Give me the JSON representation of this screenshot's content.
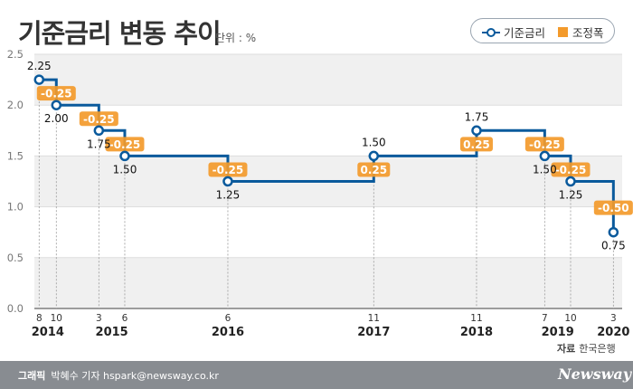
{
  "title": "기준금리 변동 추이",
  "unit": "단위 : %",
  "legend": {
    "rate": "기준금리",
    "adjust": "조정폭"
  },
  "source": {
    "label": "자료",
    "value": "한국은행"
  },
  "credit": {
    "label": "그래픽",
    "value": "박혜수 기자 hspark@newsway.co.kr"
  },
  "brand": "Newsway",
  "colors": {
    "line": "#0a5a9c",
    "adjust": "#f39a2b",
    "band": "#f0f0f0"
  },
  "chart_data": {
    "type": "line",
    "step": true,
    "ylim": [
      0,
      2.5
    ],
    "yticks": [
      "0.0",
      "0.5",
      "1.0",
      "1.5",
      "2.0",
      "2.5"
    ],
    "grid": "alternating horizontal bands",
    "series": [
      {
        "name": "기준금리",
        "points": [
          {
            "date": "2014-08",
            "month": "8",
            "value": 2.25,
            "label": "2.25"
          },
          {
            "date": "2014-10",
            "month": "10",
            "value": 2.0,
            "label": "2.00",
            "change": "-0.25"
          },
          {
            "date": "2015-03",
            "month": "3",
            "value": 1.75,
            "label": "1.75",
            "change": "-0.25"
          },
          {
            "date": "2015-06",
            "month": "6",
            "value": 1.5,
            "label": "1.50",
            "change": "-0.25"
          },
          {
            "date": "2016-06",
            "month": "6",
            "value": 1.25,
            "label": "1.25",
            "change": "-0.25"
          },
          {
            "date": "2017-11",
            "month": "11",
            "value": 1.5,
            "label": "1.50",
            "change": "0.25"
          },
          {
            "date": "2018-11",
            "month": "11",
            "value": 1.75,
            "label": "1.75",
            "change": "0.25"
          },
          {
            "date": "2019-07",
            "month": "7",
            "value": 1.5,
            "label": "1.50",
            "change": "-0.25"
          },
          {
            "date": "2019-10",
            "month": "10",
            "value": 1.25,
            "label": "1.25",
            "change": "-0.25"
          },
          {
            "date": "2020-03",
            "month": "3",
            "value": 0.75,
            "label": "0.75",
            "change": "-0.50"
          }
        ]
      }
    ],
    "years": [
      "2014",
      "2015",
      "2016",
      "2017",
      "2018",
      "2019",
      "2020"
    ]
  }
}
